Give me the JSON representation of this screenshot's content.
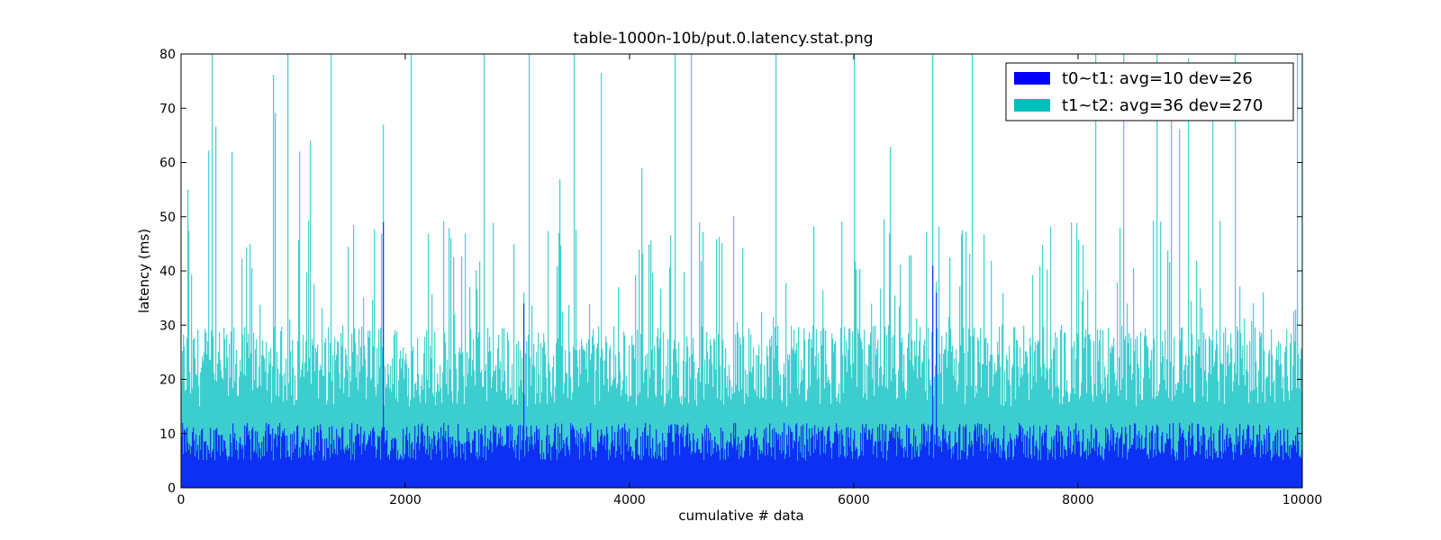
{
  "chart_data": {
    "type": "bar",
    "title": "table-1000n-10b/put.0.latency.stat.png",
    "xlabel": "cumulative # data",
    "ylabel": "latency (ms)",
    "xlim": [
      0,
      10000
    ],
    "ylim": [
      0,
      80
    ],
    "x_ticks": [
      0,
      2000,
      4000,
      6000,
      8000,
      10000
    ],
    "y_ticks": [
      0,
      10,
      20,
      30,
      40,
      50,
      60,
      70,
      80
    ],
    "stacked": true,
    "grid": false,
    "legend_position": "top-right",
    "series": [
      {
        "name": "t0~t1: avg=10 dev=26",
        "color": "#0000ff",
        "typical_range": [
          5,
          12
        ],
        "notable_points": [
          {
            "x": 1800,
            "y": 49
          },
          {
            "x": 3050,
            "y": 34
          },
          {
            "x": 6700,
            "y": 41
          },
          {
            "x": 6730,
            "y": 36
          }
        ]
      },
      {
        "name": "t1~t2: avg=36 dev=270",
        "color": "#00bfbf",
        "typical_total_range": [
          15,
          30
        ],
        "notable_points": [
          {
            "x": 60,
            "y": 55
          },
          {
            "x": 270,
            "y": 80
          },
          {
            "x": 450,
            "y": 62
          },
          {
            "x": 950,
            "y": 80
          },
          {
            "x": 1050,
            "y": 62
          },
          {
            "x": 1150,
            "y": 64
          },
          {
            "x": 1330,
            "y": 80
          },
          {
            "x": 1800,
            "y": 67
          },
          {
            "x": 2050,
            "y": 80
          },
          {
            "x": 2700,
            "y": 80
          },
          {
            "x": 3100,
            "y": 80
          },
          {
            "x": 3500,
            "y": 80
          },
          {
            "x": 4400,
            "y": 80
          },
          {
            "x": 4550,
            "y": 80
          },
          {
            "x": 5300,
            "y": 80
          },
          {
            "x": 6000,
            "y": 80
          },
          {
            "x": 6700,
            "y": 80
          },
          {
            "x": 7050,
            "y": 80
          },
          {
            "x": 8150,
            "y": 80
          },
          {
            "x": 8400,
            "y": 80
          },
          {
            "x": 8700,
            "y": 80
          },
          {
            "x": 9400,
            "y": 80
          },
          {
            "x": 9950,
            "y": 80
          }
        ]
      }
    ]
  }
}
